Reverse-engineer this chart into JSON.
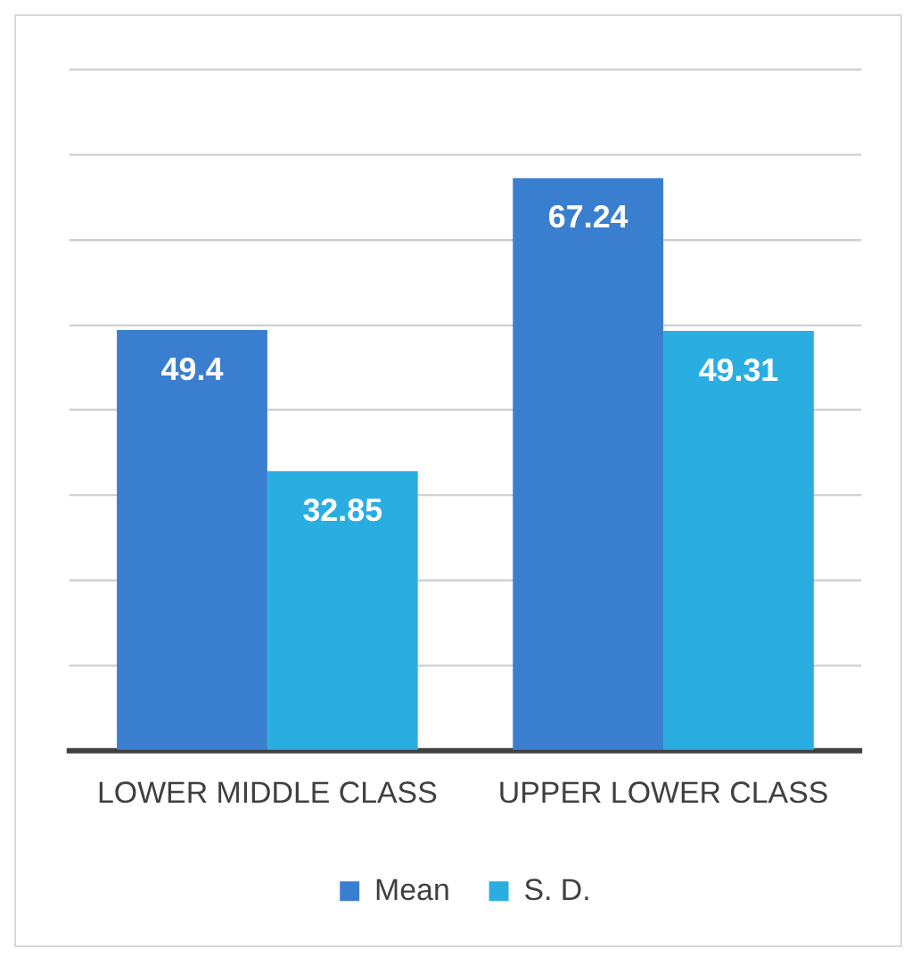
{
  "chart_data": {
    "type": "bar",
    "categories": [
      "LOWER MIDDLE CLASS",
      "UPPER LOWER CLASS"
    ],
    "series": [
      {
        "name": "Mean",
        "color": "#3a7fcf",
        "values": [
          49.4,
          67.24
        ]
      },
      {
        "name": "S. D.",
        "color": "#2aaee1",
        "values": [
          32.85,
          49.31
        ]
      }
    ],
    "ylim": [
      0,
      80
    ],
    "yticks": [
      0,
      {
        "value": 10,
        "label": null
      },
      {
        "value": 20,
        "label": null
      },
      {
        "value": 30,
        "label": null
      },
      {
        "value": 40,
        "label": null
      },
      {
        "value": 50,
        "label": null
      },
      {
        "value": 60,
        "label": null
      },
      {
        "value": 70,
        "label": null
      },
      {
        "value": 80,
        "label": null
      }
    ],
    "grid": "y",
    "tick_labels": "x",
    "legend": "bottom",
    "data_labels": true
  }
}
